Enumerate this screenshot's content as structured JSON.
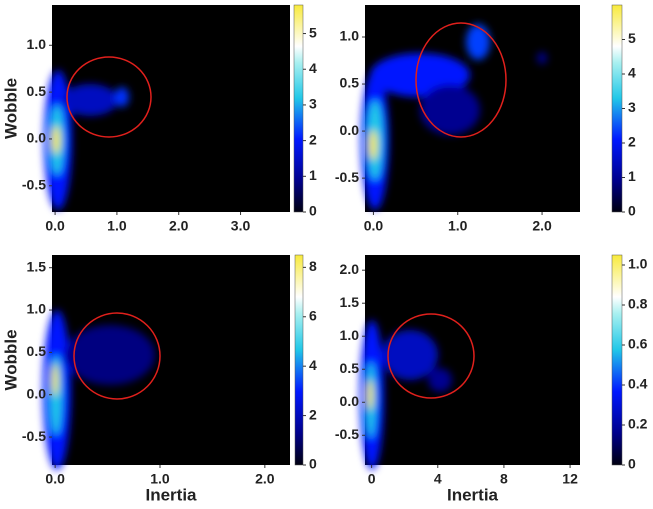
{
  "chart_data": [
    {
      "type": "heatmap",
      "ylabel": "Wobble",
      "xlim": [
        -0.05,
        3.8
      ],
      "xticks": [
        {
          "value": 0,
          "label": "0.0"
        },
        {
          "value": 1,
          "label": "1.0"
        },
        {
          "value": 2,
          "label": "2.0"
        },
        {
          "value": 3,
          "label": "3.0"
        }
      ],
      "ylim": [
        -0.78,
        1.43
      ],
      "yticks": [
        {
          "value": -0.5,
          "label": "-0.5"
        },
        {
          "value": 0,
          "label": "0.0"
        },
        {
          "value": 0.5,
          "label": "0.5"
        },
        {
          "value": 1,
          "label": "1.0"
        }
      ],
      "clim": [
        0,
        5.8
      ],
      "cticks": [
        0,
        1,
        2,
        3,
        4,
        5
      ]
    },
    {
      "type": "heatmap",
      "xlim": [
        -0.1,
        2.45
      ],
      "xticks": [
        {
          "value": 0,
          "label": "0.0"
        },
        {
          "value": 1,
          "label": "1.0"
        },
        {
          "value": 2,
          "label": "2.0"
        }
      ],
      "ylim": [
        -0.86,
        1.34
      ],
      "yticks": [
        {
          "value": -0.5,
          "label": "-0.5"
        },
        {
          "value": 0,
          "label": "0.0"
        },
        {
          "value": 0.5,
          "label": "0.5"
        },
        {
          "value": 1,
          "label": "1.0"
        }
      ],
      "clim": [
        0,
        6
      ],
      "cticks": [
        0,
        1,
        2,
        3,
        4,
        5
      ]
    },
    {
      "type": "heatmap",
      "xlabel": "Inertia",
      "ylabel": "Wobble",
      "xlim": [
        -0.03,
        2.24
      ],
      "xticks": [
        {
          "value": 0,
          "label": "0.0"
        },
        {
          "value": 1,
          "label": "1.0"
        },
        {
          "value": 2,
          "label": "2.0"
        }
      ],
      "ylim": [
        -0.83,
        1.65
      ],
      "yticks": [
        {
          "value": -0.5,
          "label": "-0.5"
        },
        {
          "value": 0,
          "label": "0.0"
        },
        {
          "value": 0.5,
          "label": "0.5"
        },
        {
          "value": 1,
          "label": "1.0"
        },
        {
          "value": 1.5,
          "label": "1.5"
        }
      ],
      "clim": [
        0,
        8.5
      ],
      "cticks": [
        0,
        2,
        4,
        6,
        8
      ]
    },
    {
      "type": "heatmap",
      "xlabel": "Inertia",
      "xlim": [
        -0.4,
        12.6
      ],
      "xticks": [
        0,
        4,
        8,
        12
      ],
      "ylim": [
        -0.95,
        2.23
      ],
      "yticks": [
        {
          "value": -0.5,
          "label": "-0.5"
        },
        {
          "value": 0,
          "label": "0.0"
        },
        {
          "value": 0.5,
          "label": "0.5"
        },
        {
          "value": 1,
          "label": "1.0"
        },
        {
          "value": 1.5,
          "label": "1.5"
        },
        {
          "value": 2,
          "label": "2.0"
        }
      ],
      "clim": [
        0,
        1.05
      ],
      "cticks": [
        0,
        0.2,
        0.4,
        0.6,
        0.8,
        {
          "value": 1,
          "label": "1.0"
        }
      ]
    }
  ]
}
